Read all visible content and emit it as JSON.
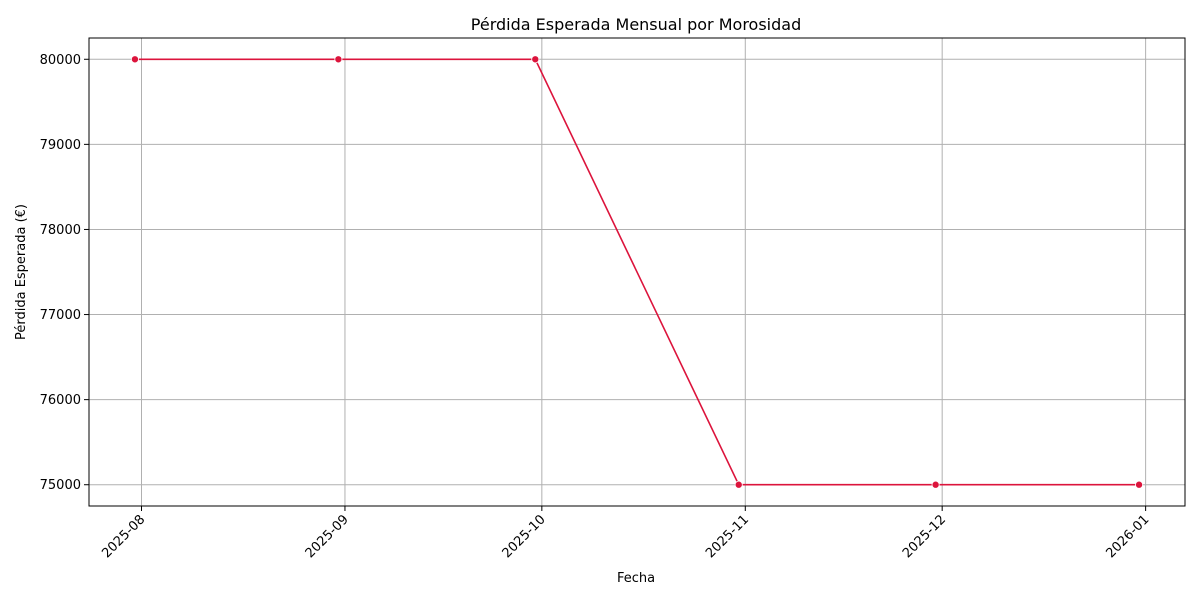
{
  "chart_data": {
    "type": "line",
    "title": "Pérdida Esperada Mensual por Morosidad",
    "xlabel": "Fecha",
    "ylabel": "Pérdida Esperada (€)",
    "x": [
      "2025-07-31",
      "2025-08-31",
      "2025-09-30",
      "2025-10-31",
      "2025-11-30",
      "2025-12-31"
    ],
    "series": [
      {
        "values": [
          80000,
          80000,
          80000,
          75000,
          75000,
          75000
        ]
      }
    ],
    "x_ticks": [
      "2025-08",
      "2025-09",
      "2025-10",
      "2025-11",
      "2025-12",
      "2026-01"
    ],
    "y_ticks": [
      75000,
      76000,
      77000,
      78000,
      79000,
      80000
    ],
    "ylim": [
      74750,
      80250
    ],
    "xlim": [
      "2025-07-24",
      "2026-01-07"
    ],
    "grid": true,
    "line_color": "#dc143c"
  }
}
